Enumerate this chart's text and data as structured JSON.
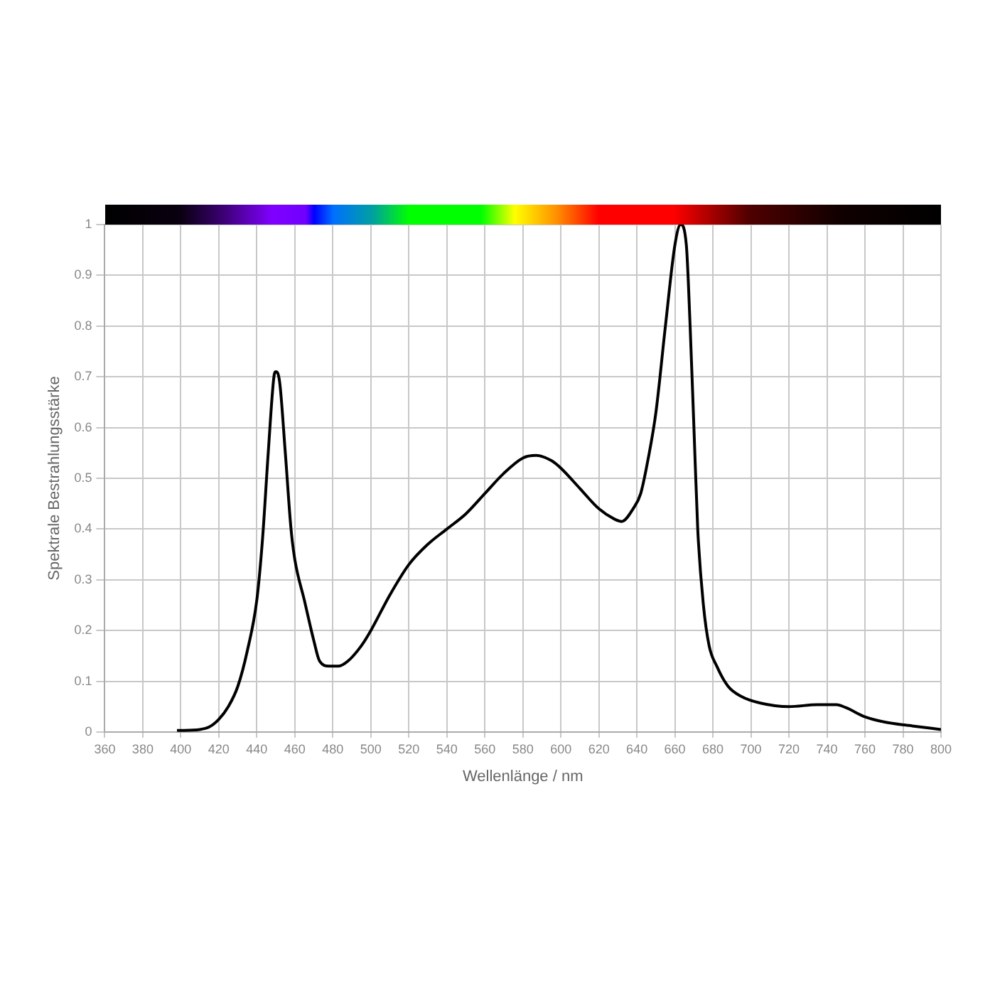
{
  "chart_data": {
    "type": "line",
    "xlabel": "Wellenlänge / nm",
    "ylabel": "Spektrale Bestrahlungsstärke",
    "xlim": [
      360,
      800
    ],
    "xticks": [
      360,
      380,
      400,
      420,
      440,
      460,
      480,
      500,
      520,
      540,
      560,
      580,
      600,
      620,
      640,
      660,
      680,
      700,
      720,
      740,
      760,
      780,
      800
    ],
    "ylim": [
      0,
      1
    ],
    "yticks": [
      0,
      0.1,
      0.2,
      0.3,
      0.4,
      0.5,
      0.6,
      0.7,
      0.8,
      0.9,
      1
    ],
    "grid": true,
    "marker": "none",
    "line_style": "solid",
    "series": [
      {
        "color": "#000000",
        "x": [
          398,
          410,
          415,
          420,
          425,
          430,
          435,
          440,
          443,
          446,
          449,
          450,
          452,
          455,
          458,
          460,
          465,
          470,
          473,
          478,
          483,
          488,
          495,
          500,
          510,
          520,
          530,
          540,
          550,
          560,
          570,
          580,
          587,
          595,
          600,
          610,
          620,
          628,
          632,
          638,
          642,
          646,
          650,
          655,
          660,
          663,
          666,
          668,
          670,
          672,
          675,
          678,
          682,
          688,
          695,
          705,
          720,
          735,
          745,
          750,
          760,
          770,
          785,
          800
        ],
        "values": [
          0.003,
          0.005,
          0.01,
          0.025,
          0.05,
          0.09,
          0.16,
          0.26,
          0.38,
          0.55,
          0.7,
          0.71,
          0.69,
          0.55,
          0.4,
          0.34,
          0.26,
          0.18,
          0.14,
          0.13,
          0.13,
          0.14,
          0.17,
          0.2,
          0.27,
          0.33,
          0.37,
          0.4,
          0.43,
          0.47,
          0.51,
          0.54,
          0.545,
          0.535,
          0.52,
          0.48,
          0.44,
          0.42,
          0.415,
          0.44,
          0.47,
          0.54,
          0.63,
          0.8,
          0.96,
          1.0,
          0.96,
          0.8,
          0.6,
          0.4,
          0.25,
          0.17,
          0.13,
          0.09,
          0.07,
          0.057,
          0.05,
          0.054,
          0.054,
          0.048,
          0.03,
          0.02,
          0.012,
          0.005
        ]
      }
    ]
  }
}
